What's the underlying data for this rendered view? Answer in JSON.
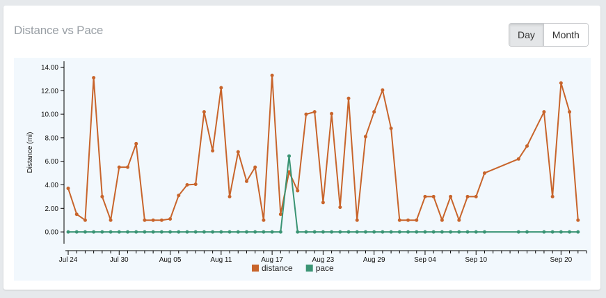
{
  "card": {
    "title": "Distance vs Pace",
    "toggle": {
      "day_label": "Day",
      "month_label": "Month",
      "selected": "Day"
    }
  },
  "chart_data": {
    "type": "line",
    "title": "Distance vs Pace",
    "ylabel": "Distance (mi)",
    "xlabel": "",
    "ylim": [
      -1,
      14.5
    ],
    "xlim": [
      "2015-07-24",
      "2015-09-23"
    ],
    "y_ticks": [
      "0.00",
      "2.00",
      "4.00",
      "6.00",
      "8.00",
      "10.00",
      "12.00",
      "14.00"
    ],
    "x_tick_labels": [
      {
        "date": "2015-07-24",
        "label": "Jul 24"
      },
      {
        "date": "2015-07-30",
        "label": "Jul 30"
      },
      {
        "date": "2015-08-05",
        "label": "Aug 05"
      },
      {
        "date": "2015-08-11",
        "label": "Aug 11"
      },
      {
        "date": "2015-08-17",
        "label": "Aug 17"
      },
      {
        "date": "2015-08-23",
        "label": "Aug 23"
      },
      {
        "date": "2015-08-29",
        "label": "Aug 29"
      },
      {
        "date": "2015-09-04",
        "label": "Sep 04"
      },
      {
        "date": "2015-09-10",
        "label": "Sep 10"
      },
      {
        "date": "2015-09-20",
        "label": "Sep 20"
      }
    ],
    "legend": {
      "position": "bottom-center"
    },
    "series": [
      {
        "name": "distance",
        "color": "#c8642b",
        "points": [
          [
            "2015-07-24",
            3.7
          ],
          [
            "2015-07-25",
            1.5
          ],
          [
            "2015-07-26",
            1.0
          ],
          [
            "2015-07-27",
            13.1
          ],
          [
            "2015-07-28",
            3.0
          ],
          [
            "2015-07-29",
            1.0
          ],
          [
            "2015-07-30",
            5.5
          ],
          [
            "2015-07-31",
            5.5
          ],
          [
            "2015-08-01",
            7.5
          ],
          [
            "2015-08-02",
            1.0
          ],
          [
            "2015-08-03",
            1.0
          ],
          [
            "2015-08-04",
            1.0
          ],
          [
            "2015-08-05",
            1.1
          ],
          [
            "2015-08-06",
            3.1
          ],
          [
            "2015-08-07",
            4.0
          ],
          [
            "2015-08-08",
            4.05
          ],
          [
            "2015-08-09",
            10.2
          ],
          [
            "2015-08-10",
            6.9
          ],
          [
            "2015-08-11",
            12.25
          ],
          [
            "2015-08-12",
            3.0
          ],
          [
            "2015-08-13",
            6.8
          ],
          [
            "2015-08-14",
            4.3
          ],
          [
            "2015-08-15",
            5.5
          ],
          [
            "2015-08-16",
            1.0
          ],
          [
            "2015-08-17",
            13.3
          ],
          [
            "2015-08-18",
            1.5
          ],
          [
            "2015-08-19",
            5.1
          ],
          [
            "2015-08-20",
            3.5
          ],
          [
            "2015-08-21",
            10.0
          ],
          [
            "2015-08-22",
            10.2
          ],
          [
            "2015-08-23",
            2.5
          ],
          [
            "2015-08-24",
            10.05
          ],
          [
            "2015-08-25",
            2.1
          ],
          [
            "2015-08-26",
            11.35
          ],
          [
            "2015-08-27",
            1.0
          ],
          [
            "2015-08-28",
            8.1
          ],
          [
            "2015-08-29",
            10.2
          ],
          [
            "2015-08-30",
            12.05
          ],
          [
            "2015-08-31",
            8.8
          ],
          [
            "2015-09-01",
            1.0
          ],
          [
            "2015-09-02",
            1.0
          ],
          [
            "2015-09-03",
            1.0
          ],
          [
            "2015-09-04",
            3.0
          ],
          [
            "2015-09-05",
            3.0
          ],
          [
            "2015-09-06",
            1.0
          ],
          [
            "2015-09-07",
            3.0
          ],
          [
            "2015-09-08",
            1.0
          ],
          [
            "2015-09-09",
            3.0
          ],
          [
            "2015-09-10",
            3.0
          ],
          [
            "2015-09-11",
            5.0
          ],
          [
            "2015-09-15",
            6.2
          ],
          [
            "2015-09-16",
            7.3
          ],
          [
            "2015-09-18",
            10.2
          ],
          [
            "2015-09-19",
            3.0
          ],
          [
            "2015-09-20",
            12.65
          ],
          [
            "2015-09-21",
            10.2
          ],
          [
            "2015-09-22",
            1.0
          ]
        ]
      },
      {
        "name": "pace",
        "color": "#3a9474",
        "points": [
          [
            "2015-07-24",
            0
          ],
          [
            "2015-07-25",
            0
          ],
          [
            "2015-07-26",
            0
          ],
          [
            "2015-07-27",
            0
          ],
          [
            "2015-07-28",
            0
          ],
          [
            "2015-07-29",
            0
          ],
          [
            "2015-07-30",
            0
          ],
          [
            "2015-07-31",
            0
          ],
          [
            "2015-08-01",
            0
          ],
          [
            "2015-08-02",
            0
          ],
          [
            "2015-08-03",
            0
          ],
          [
            "2015-08-04",
            0
          ],
          [
            "2015-08-05",
            0
          ],
          [
            "2015-08-06",
            0
          ],
          [
            "2015-08-07",
            0
          ],
          [
            "2015-08-08",
            0
          ],
          [
            "2015-08-09",
            0
          ],
          [
            "2015-08-10",
            0
          ],
          [
            "2015-08-11",
            0
          ],
          [
            "2015-08-12",
            0
          ],
          [
            "2015-08-13",
            0
          ],
          [
            "2015-08-14",
            0
          ],
          [
            "2015-08-15",
            0
          ],
          [
            "2015-08-16",
            0
          ],
          [
            "2015-08-17",
            0
          ],
          [
            "2015-08-18",
            0
          ],
          [
            "2015-08-19",
            6.45
          ],
          [
            "2015-08-20",
            0
          ],
          [
            "2015-08-21",
            0
          ],
          [
            "2015-08-22",
            0
          ],
          [
            "2015-08-23",
            0
          ],
          [
            "2015-08-24",
            0
          ],
          [
            "2015-08-25",
            0
          ],
          [
            "2015-08-26",
            0
          ],
          [
            "2015-08-27",
            0
          ],
          [
            "2015-08-28",
            0
          ],
          [
            "2015-08-29",
            0
          ],
          [
            "2015-08-30",
            0
          ],
          [
            "2015-08-31",
            0
          ],
          [
            "2015-09-01",
            0
          ],
          [
            "2015-09-02",
            0
          ],
          [
            "2015-09-03",
            0
          ],
          [
            "2015-09-04",
            0
          ],
          [
            "2015-09-05",
            0
          ],
          [
            "2015-09-06",
            0
          ],
          [
            "2015-09-07",
            0
          ],
          [
            "2015-09-08",
            0
          ],
          [
            "2015-09-09",
            0
          ],
          [
            "2015-09-10",
            0
          ],
          [
            "2015-09-11",
            0
          ],
          [
            "2015-09-15",
            0
          ],
          [
            "2015-09-16",
            0
          ],
          [
            "2015-09-18",
            0
          ],
          [
            "2015-09-19",
            0
          ],
          [
            "2015-09-20",
            0
          ],
          [
            "2015-09-21",
            0
          ],
          [
            "2015-09-22",
            0
          ]
        ]
      }
    ]
  }
}
